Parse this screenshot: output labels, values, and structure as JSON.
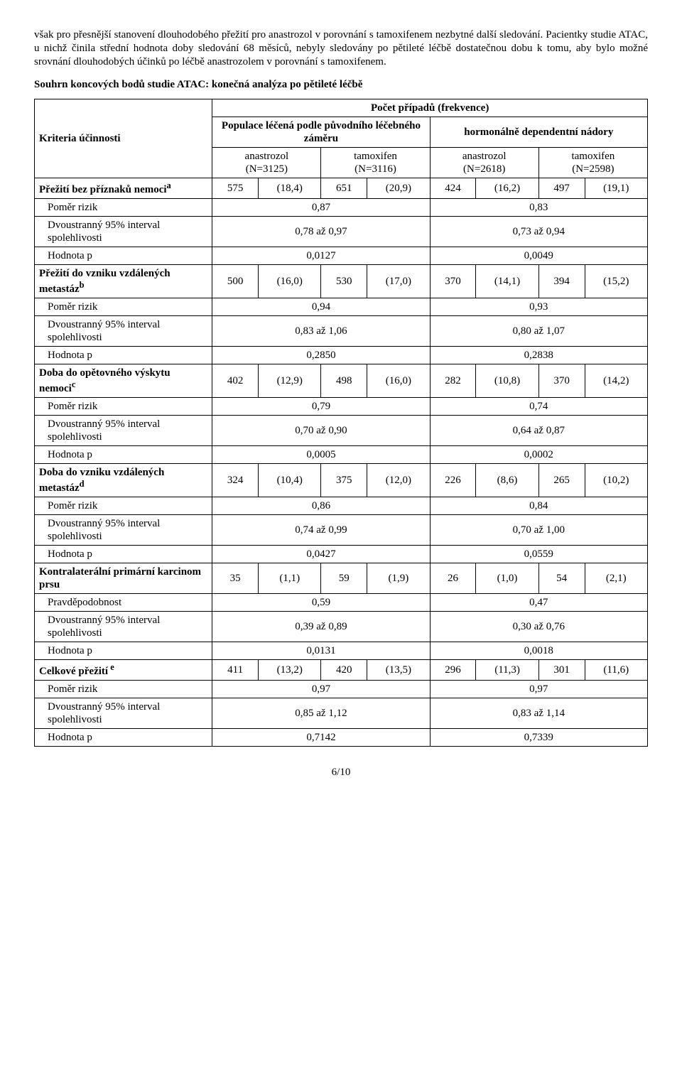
{
  "intro_p1": "však pro přesnější stanovení dlouhodobého přežití pro anastrozol v porovnání s tamoxifenem nezbytné další sledování. Pacientky studie ATAC, u nichž činila střední hodnota doby sledování 68 měsíců, nebyly sledovány po pětileté léčbě dostatečnou dobu k tomu, aby bylo možné srovnání dlouhodobých účinků po léčbě anastrozolem v porovnání s tamoxifenem.",
  "table_title": "Souhrn koncových bodů studie ATAC: konečná analýza po pětileté léčbě",
  "headers": {
    "criteria": "Kriteria účinnosti",
    "cases": "Počet případů (frekvence)",
    "pop_itt": "Populace léčená podle původního léčebného záměru",
    "hr_tumors": "hormonálně dependentní nádory",
    "anastrozol": "anastrozol",
    "tamoxifen": "tamoxifen",
    "n3125": "(N=3125)",
    "n3116": "(N=3116)",
    "n2618": "(N=2618)",
    "n2598": "(N=2598)"
  },
  "labels": {
    "hr": "Poměr rizik",
    "or": "Pravděpodobnost",
    "ci": "Dvoustranný 95% interval spolehlivosti",
    "p": "Hodnota p"
  },
  "rows": [
    {
      "label": "Přežití bez příznaků nemoci",
      "sup": "a",
      "bold": true,
      "v": [
        "575",
        "(18,4)",
        "651",
        "(20,9)",
        "424",
        "(16,2)",
        "497",
        "(19,1)"
      ],
      "ratio_label": "hr",
      "ratio": [
        "0,87",
        "0,83"
      ],
      "ci": [
        "0,78 až 0,97",
        "0,73 až 0,94"
      ],
      "p": [
        "0,0127",
        "0,0049"
      ]
    },
    {
      "label": "Přežití do vzniku vzdálených metastáz",
      "sup": "b",
      "bold": true,
      "v": [
        "500",
        "(16,0)",
        "530",
        "(17,0)",
        "370",
        "(14,1)",
        "394",
        "(15,2)"
      ],
      "ratio_label": "hr",
      "ratio": [
        "0,94",
        "0,93"
      ],
      "ci": [
        "0,83 až 1,06",
        "0,80 až 1,07"
      ],
      "p": [
        "0,2850",
        "0,2838"
      ]
    },
    {
      "label": "Doba do opětovného výskytu nemoci",
      "sup": "c",
      "bold": true,
      "v": [
        "402",
        "(12,9)",
        "498",
        "(16,0)",
        "282",
        "(10,8)",
        "370",
        "(14,2)"
      ],
      "ratio_label": "hr",
      "ratio": [
        "0,79",
        "0,74"
      ],
      "ci": [
        "0,70 až 0,90",
        "0,64 až 0,87"
      ],
      "p": [
        "0,0005",
        "0,0002"
      ]
    },
    {
      "label": "Doba do vzniku vzdálených metastáz",
      "sup": "d",
      "bold": true,
      "v": [
        "324",
        "(10,4)",
        "375",
        "(12,0)",
        "226",
        "(8,6)",
        "265",
        "(10,2)"
      ],
      "ratio_label": "hr",
      "ratio": [
        "0,86",
        "0,84"
      ],
      "ci": [
        "0,74 až 0,99",
        "0,70 až 1,00"
      ],
      "p": [
        "0,0427",
        "0,0559"
      ]
    },
    {
      "label": "Kontralaterální primární karcinom prsu",
      "sup": "",
      "bold": true,
      "v": [
        "35",
        "(1,1)",
        "59",
        "(1,9)",
        "26",
        "(1,0)",
        "54",
        "(2,1)"
      ],
      "ratio_label": "or",
      "ratio": [
        "0,59",
        "0,47"
      ],
      "ci": [
        "0,39 až 0,89",
        "0,30 až 0,76"
      ],
      "p": [
        "0,0131",
        "0,0018"
      ]
    },
    {
      "label": "Celkové přežití",
      "sup": " e",
      "bold": true,
      "v": [
        "411",
        "(13,2)",
        "420",
        "(13,5)",
        "296",
        "(11,3)",
        "301",
        "(11,6)"
      ],
      "ratio_label": "hr",
      "ratio": [
        "0,97",
        "0,97"
      ],
      "ci": [
        "0,85 až 1,12",
        "0,83 až 1,14"
      ],
      "p": [
        "0,7142",
        "0,7339"
      ]
    }
  ],
  "footer": "6/10"
}
